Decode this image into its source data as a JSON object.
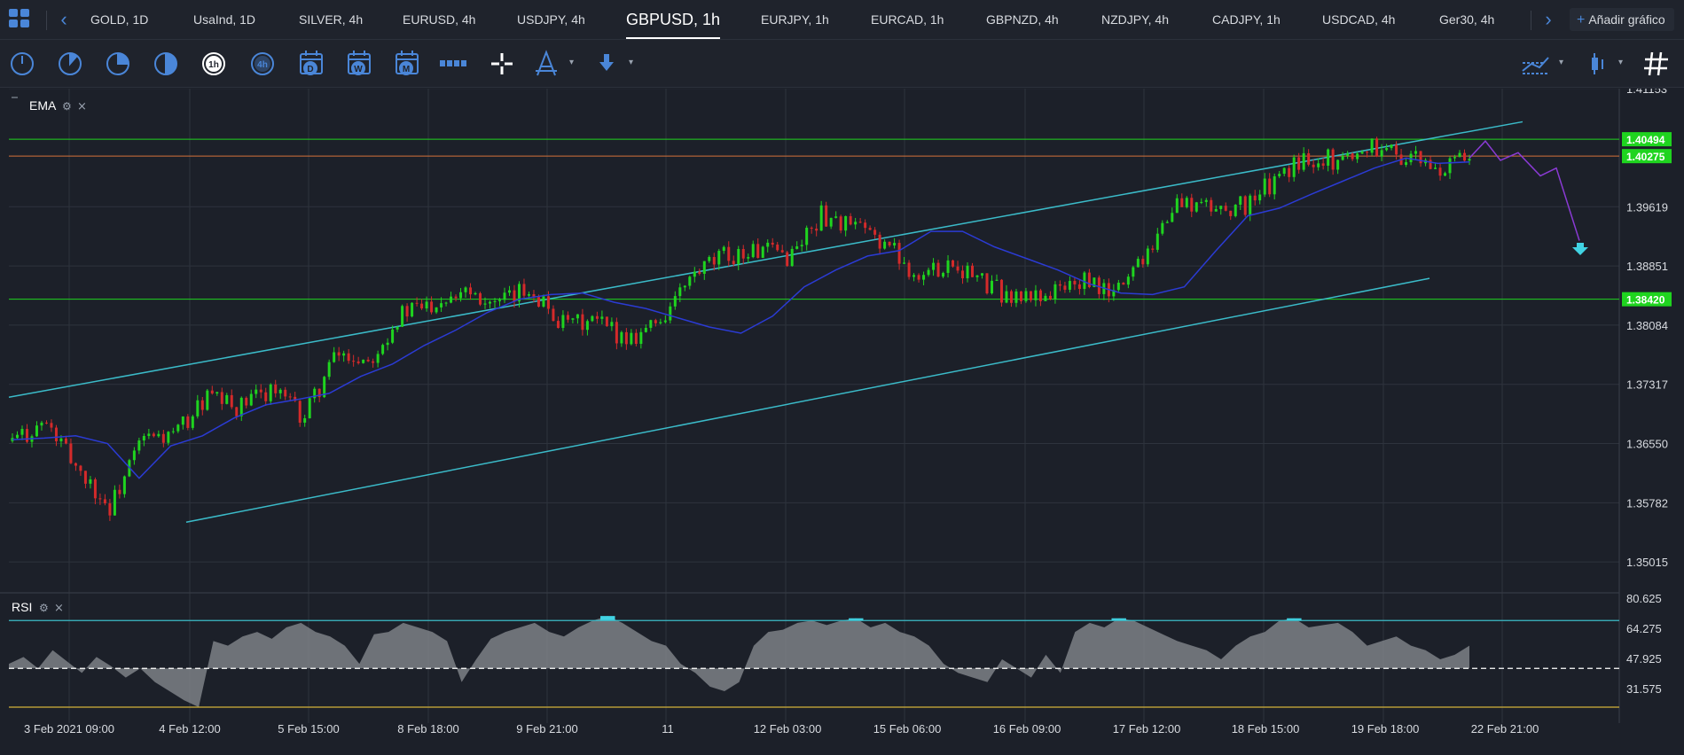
{
  "tabs": [
    {
      "label": "GOLD, 1D",
      "active": false
    },
    {
      "label": "UsaInd, 1D",
      "active": false
    },
    {
      "label": "SILVER, 4h",
      "active": false
    },
    {
      "label": "EURUSD, 4h",
      "active": false
    },
    {
      "label": "USDJPY, 4h",
      "active": false
    },
    {
      "label": "GBPUSD, 1h",
      "active": true
    },
    {
      "label": "EURJPY, 1h",
      "active": false
    },
    {
      "label": "EURCAD, 1h",
      "active": false
    },
    {
      "label": "GBPNZD, 4h",
      "active": false
    },
    {
      "label": "NZDJPY, 4h",
      "active": false
    },
    {
      "label": "CADJPY, 1h",
      "active": false
    },
    {
      "label": "USDCAD, 4h",
      "active": false
    },
    {
      "label": "Ger30, 4h",
      "active": false
    }
  ],
  "add_chart_label": "Añadir gráfico",
  "toolbar": {
    "left_tools": [
      "clock-m1-icon",
      "clock-m5-icon",
      "clock-m15-icon",
      "clock-m30-icon",
      "clock-1h-icon",
      "clock-4h-icon",
      "calendar-d-icon",
      "calendar-w-icon",
      "calendar-m-icon",
      "ruler-icon",
      "crosshair-icon",
      "draw-tool-icon",
      "arrow-down-tool-icon"
    ],
    "hour_label": "1h",
    "four_hour_label": "4h",
    "day_label": "D",
    "week_label": "W",
    "month_label": "M",
    "right_tools": [
      "chart-type-icon",
      "indicators-icon",
      "grid-icon"
    ]
  },
  "main_panel": {
    "indicator_label": "EMA",
    "price_ticks": [
      "1.41153",
      "1.39619",
      "1.38851",
      "1.38084",
      "1.37317",
      "1.36550",
      "1.35782",
      "1.35015"
    ],
    "price_tags": [
      {
        "label": "1.40494",
        "color": "#1fd41f"
      },
      {
        "label": "1.40275",
        "color": "#1fd41f"
      },
      {
        "label": "1.38420",
        "color": "#1fd41f"
      }
    ],
    "forecast_arrow": "down-arrow-icon"
  },
  "rsi_panel": {
    "indicator_label": "RSI",
    "ticks": [
      "80.625",
      "64.275",
      "47.925",
      "31.575"
    ]
  },
  "time_axis": [
    "3 Feb 2021 09:00",
    "4 Feb 12:00",
    "5 Feb 15:00",
    "8 Feb 18:00",
    "9 Feb 21:00",
    "11",
    "12 Feb 03:00",
    "15 Feb 06:00",
    "16 Feb 09:00",
    "17 Feb 12:00",
    "18 Feb 15:00",
    "19 Feb 18:00",
    "22 Feb 21:00"
  ],
  "colors": {
    "up": "#1fd41f",
    "down": "#d42a2a",
    "ema": "#2b3bd4",
    "channel": "#3bbbc9",
    "hline_green": "#1fd41f",
    "hline_orange": "#d4703a",
    "forecast": "#8a3ad4",
    "rsi_fill": "#8a8d93",
    "rsi_over": "#41d3e3",
    "rsi_under": "#d4b23a"
  },
  "chart_data": {
    "type": "candlestick",
    "title": "GBPUSD, 1h",
    "ylim": [
      1.3466,
      1.4115
    ],
    "horizontal_levels": [
      1.40494,
      1.40275,
      1.3842
    ],
    "channel_upper": [
      [
        "2021-02-03 09:00",
        1.3715
      ],
      [
        "2021-02-22 18:00",
        1.4072
      ]
    ],
    "channel_lower": [
      [
        "2021-02-04 12:00",
        1.3553
      ],
      [
        "2021-02-19 21:00",
        1.3869
      ]
    ],
    "path_points": [
      [
        1.3658,
        1.3668,
        1.365
      ],
      [
        1.3682,
        1.3688,
        1.3672
      ],
      [
        1.3625,
        1.3658,
        1.3612
      ],
      [
        1.357,
        1.3615,
        1.356
      ],
      [
        1.366,
        1.37,
        1.359
      ],
      [
        1.3665,
        1.3682,
        1.3652
      ],
      [
        1.3715,
        1.3725,
        1.37
      ],
      [
        1.37,
        1.3722,
        1.3682
      ],
      [
        1.3728,
        1.3738,
        1.3712
      ],
      [
        1.3688,
        1.3722,
        1.367
      ],
      [
        1.377,
        1.3775,
        1.369
      ],
      [
        1.3765,
        1.3785,
        1.3755
      ],
      [
        1.3822,
        1.383,
        1.3808
      ],
      [
        1.3838,
        1.3845,
        1.3825
      ],
      [
        1.386,
        1.387,
        1.3848
      ],
      [
        1.3832,
        1.3862,
        1.3822
      ],
      [
        1.3858,
        1.3865,
        1.384
      ],
      [
        1.3808,
        1.3832,
        1.38
      ],
      [
        1.3812,
        1.3825,
        1.38
      ],
      [
        1.3792,
        1.3808,
        1.378
      ],
      [
        1.3815,
        1.383,
        1.379
      ],
      [
        1.387,
        1.388,
        1.3855
      ],
      [
        1.3898,
        1.3905,
        1.3885
      ],
      [
        1.3905,
        1.3915,
        1.3895
      ],
      [
        1.3898,
        1.3908,
        1.3885
      ],
      [
        1.3952,
        1.3955,
        1.3925
      ],
      [
        1.3935,
        1.3948,
        1.3915
      ],
      [
        1.3915,
        1.3935,
        1.3895
      ],
      [
        1.387,
        1.3905,
        1.386
      ],
      [
        1.3892,
        1.3905,
        1.3878
      ],
      [
        1.3862,
        1.3878,
        1.3845
      ],
      [
        1.3842,
        1.386,
        1.3828
      ],
      [
        1.385,
        1.386,
        1.3835
      ],
      [
        1.3865,
        1.387,
        1.385
      ],
      [
        1.3848,
        1.3862,
        1.3842
      ],
      [
        1.3905,
        1.391,
        1.3855
      ],
      [
        1.3968,
        1.3975,
        1.3945
      ],
      [
        1.396,
        1.3972,
        1.3948
      ],
      [
        1.3962,
        1.3972,
        1.395
      ],
      [
        1.3995,
        1.4005,
        1.398
      ],
      [
        1.4028,
        1.404,
        1.4015
      ],
      [
        1.4022,
        1.4032,
        1.401
      ],
      [
        1.4042,
        1.4052,
        1.4028
      ],
      [
        1.4028,
        1.4042,
        1.4015
      ],
      [
        1.4008,
        1.4025,
        1.3998
      ],
      [
        1.4025,
        1.4038,
        1.4015
      ]
    ],
    "ema_path": [
      [
        1.366
      ],
      [
        1.3662
      ],
      [
        1.3665
      ],
      [
        1.3655
      ],
      [
        1.361
      ],
      [
        1.3652
      ],
      [
        1.3665
      ],
      [
        1.3688
      ],
      [
        1.3705
      ],
      [
        1.3712
      ],
      [
        1.372
      ],
      [
        1.3742
      ],
      [
        1.3758
      ],
      [
        1.3782
      ],
      [
        1.3802
      ],
      [
        1.3825
      ],
      [
        1.3842
      ],
      [
        1.3848
      ],
      [
        1.385
      ],
      [
        1.3838
      ],
      [
        1.383
      ],
      [
        1.3818
      ],
      [
        1.3806
      ],
      [
        1.3798
      ],
      [
        1.382
      ],
      [
        1.3858
      ],
      [
        1.388
      ],
      [
        1.3898
      ],
      [
        1.3905
      ],
      [
        1.393
      ],
      [
        1.393
      ],
      [
        1.391
      ],
      [
        1.3895
      ],
      [
        1.388
      ],
      [
        1.3862
      ],
      [
        1.385
      ],
      [
        1.3848
      ],
      [
        1.3858
      ],
      [
        1.3905
      ],
      [
        1.395
      ],
      [
        1.396
      ],
      [
        1.3978
      ],
      [
        1.3995
      ],
      [
        1.4012
      ],
      [
        1.4025
      ],
      [
        1.4018
      ],
      [
        1.402
      ]
    ],
    "forecast": [
      1.4047,
      1.4022,
      1.4032,
      1.4002,
      1.4012,
      1.3918
    ],
    "rsi": {
      "ylim": [
        26,
        82
      ],
      "levels": {
        "upper": 71,
        "mid": 50,
        "lower": 33
      },
      "values": [
        52,
        55,
        50,
        58,
        53,
        48,
        55,
        51,
        46,
        50,
        44,
        40,
        36,
        33,
        62,
        60,
        64,
        66,
        63,
        68,
        70,
        66,
        64,
        60,
        52,
        65,
        66,
        70,
        68,
        66,
        62,
        44,
        54,
        63,
        66,
        68,
        70,
        66,
        64,
        68,
        71,
        73,
        70,
        66,
        62,
        60,
        52,
        48,
        42,
        40,
        44,
        60,
        66,
        67,
        70,
        71,
        69,
        71,
        72,
        68,
        70,
        66,
        64,
        60,
        52,
        48,
        46,
        44,
        54,
        50,
        46,
        56,
        48,
        66,
        70,
        68,
        72,
        71,
        68,
        65,
        62,
        60,
        58,
        54,
        60,
        64,
        66,
        71,
        72,
        68,
        69,
        70,
        66,
        60,
        62,
        64,
        60,
        58,
        54,
        56,
        60
      ]
    }
  }
}
